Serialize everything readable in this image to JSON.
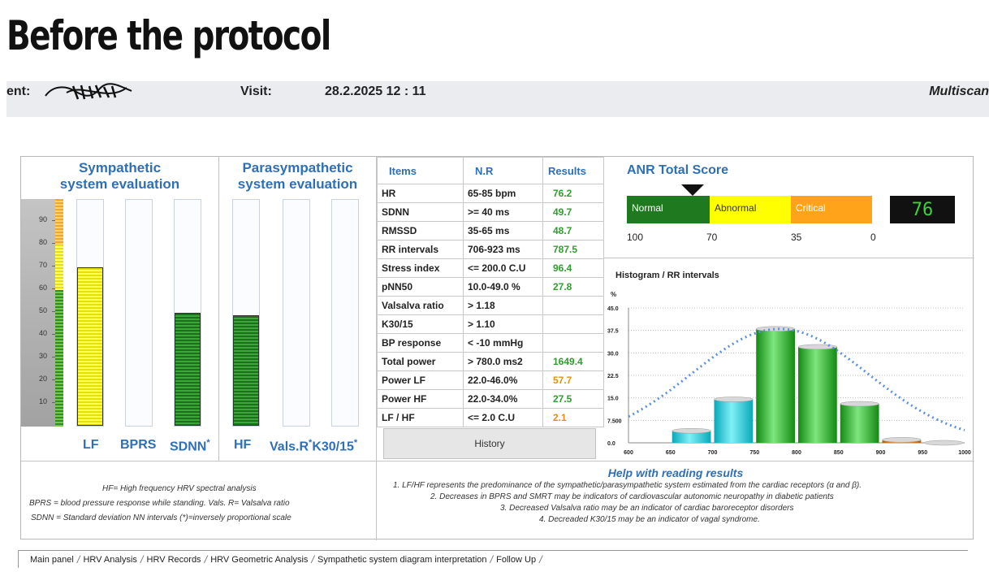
{
  "title": "Before the protocol",
  "header": {
    "patient_label": "ent:",
    "visit_label": "Visit:",
    "visit_date": "28.2.2025  12 : 11",
    "app_name": "Multiscan"
  },
  "sympathetic": {
    "title": "Sympathetic\nsystem evaluation",
    "scale_ticks": [
      "90",
      "80",
      "70",
      "60",
      "50",
      "40",
      "30",
      "20",
      "10"
    ],
    "bars": [
      {
        "label": "LF",
        "level": 70,
        "color": "yellow"
      },
      {
        "label": "BPRS",
        "level": 0,
        "color": "none"
      },
      {
        "label": "SDNN",
        "level": 50,
        "color": "green",
        "marker": "*"
      }
    ]
  },
  "parasympathetic": {
    "title": "Parasympathetic\nsystem evaluation",
    "bars": [
      {
        "label": "HF",
        "level": 49,
        "color": "green"
      },
      {
        "label": "Vals.R",
        "level": 0,
        "color": "none",
        "marker": "*"
      },
      {
        "label": "K30/15",
        "level": 0,
        "color": "none",
        "marker": "*"
      }
    ]
  },
  "table": {
    "headers": [
      "Items",
      "N.R",
      "Results"
    ],
    "rows": [
      {
        "item": "HR",
        "nr": "65-85 bpm",
        "result": "76.2",
        "status": "green"
      },
      {
        "item": "SDNN",
        "nr": ">= 40 ms",
        "result": "49.7",
        "status": "green"
      },
      {
        "item": "RMSSD",
        "nr": "35-65 ms",
        "result": "48.7",
        "status": "green"
      },
      {
        "item": "RR intervals",
        "nr": "706-923 ms",
        "result": "787.5",
        "status": "green"
      },
      {
        "item": "Stress index",
        "nr": "<= 200.0 C.U",
        "result": "96.4",
        "status": "green"
      },
      {
        "item": "pNN50",
        "nr": "10.0-49.0 %",
        "result": "27.8",
        "status": "green"
      },
      {
        "item": "Valsalva ratio",
        "nr": "> 1.18",
        "result": "",
        "status": ""
      },
      {
        "item": "K30/15",
        "nr": "> 1.10",
        "result": "",
        "status": ""
      },
      {
        "item": "BP response",
        "nr": "< -10 mmHg",
        "result": "",
        "status": ""
      },
      {
        "item": "Total power",
        "nr": "> 780.0 ms2",
        "result": "1649.4",
        "status": "green"
      },
      {
        "item": "Power LF",
        "nr": "22.0-46.0%",
        "result": "57.7",
        "status": "orange"
      },
      {
        "item": "Power HF",
        "nr": "22.0-34.0%",
        "result": "27.5",
        "status": "green"
      },
      {
        "item": "LF / HF",
        "nr": "<= 2.0 C.U",
        "result": "2.1",
        "status": "orange"
      }
    ],
    "history_button": "History"
  },
  "anr": {
    "title": "ANR Total Score",
    "segments": [
      "Normal",
      "Abnormal",
      "Critical"
    ],
    "scale": [
      "100",
      "70",
      "35",
      "0"
    ],
    "score": "76",
    "colors": {
      "normal": "#1f7a1f",
      "abnormal": "#ffff00",
      "critical": "#ffa31a"
    }
  },
  "histogram": {
    "title": "Histogram / RR intervals",
    "y_unit": "%",
    "y_ticks": [
      "45.0",
      "37.5",
      "30.0",
      "22.5",
      "15.0",
      "7.500",
      "0.0"
    ],
    "x_ticks": [
      "600",
      "650",
      "700",
      "750",
      "800",
      "850",
      "900",
      "950",
      "1000"
    ],
    "bars": [
      {
        "x": 675,
        "value": 4.0,
        "color": "cyan"
      },
      {
        "x": 725,
        "value": 14.5,
        "color": "cyan"
      },
      {
        "x": 775,
        "value": 38.0,
        "color": "green"
      },
      {
        "x": 825,
        "value": 32.0,
        "color": "green"
      },
      {
        "x": 875,
        "value": 13.0,
        "color": "green"
      },
      {
        "x": 925,
        "value": 1.0,
        "color": "orange"
      },
      {
        "x": 975,
        "value": 0.0,
        "color": "grey"
      }
    ],
    "curve": "normal-distribution-dotted"
  },
  "legend": {
    "lines": [
      "HF= High frequency HRV spectral analysis",
      "BPRS = blood pressure response while standing.  Vals. R= Valsalva ratio",
      "SDNN = Standard deviation NN intervals     (*)=inversely proportional scale"
    ]
  },
  "help": {
    "title": "Help with reading results",
    "lines": [
      "1. LF/HF represents  the predominance of the sympathetic/parasympathetic  system estimated  from the cardiac receptors  (α and β).",
      "2.  Decreases in BPRS and SMRT may be indicators of cardiovascular autonomic neuropathy in diabetic patients",
      "3.    Decreased Valsalva ratio may be an indicator  of cardiac baroreceptor  disorders",
      "4.  Decreaded K30/15 may be an indicator of vagal syndrome."
    ]
  },
  "tabs": [
    "Main panel",
    "HRV Analysis",
    "HRV Records",
    "HRV Geometric Analysis",
    "Sympathetic system diagram interpretation",
    "Follow Up"
  ]
}
